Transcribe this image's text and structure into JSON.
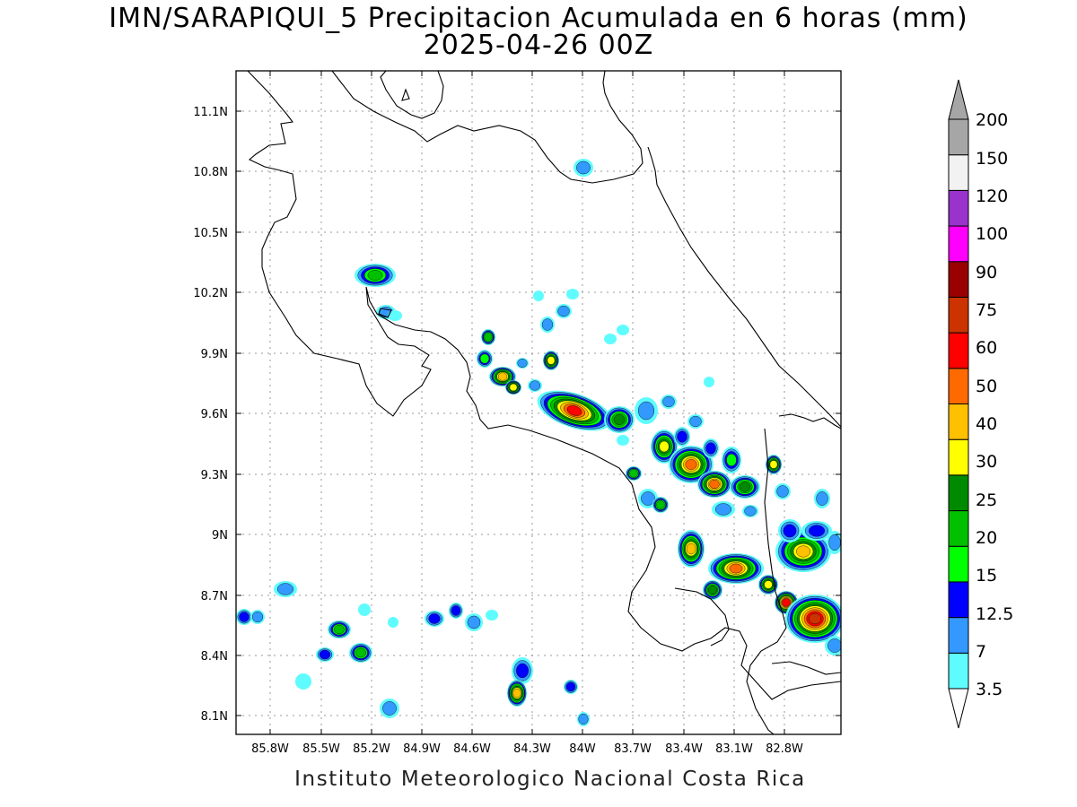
{
  "title": {
    "line1": "IMN/SARAPIQUI_5 Precipitacion Acumulada en 6 horas (mm)",
    "line2": "2025-04-26 00Z"
  },
  "footer": "Instituto Meteorologico Nacional Costa Rica",
  "axes": {
    "lat_labels": [
      "11.1N",
      "10.8N",
      "10.5N",
      "10.2N",
      "9.9N",
      "9.6N",
      "9.3N",
      "9N",
      "8.7N",
      "8.4N",
      "8.1N"
    ],
    "lon_labels": [
      "85.8W",
      "85.5W",
      "85.2W",
      "84.9W",
      "84.6W",
      "84.3W",
      "84W",
      "83.7W",
      "83.4W",
      "83.1W",
      "82.8W"
    ],
    "grid": true
  },
  "colorbar": {
    "levels": [
      "3.5",
      "7",
      "12.5",
      "15",
      "20",
      "25",
      "30",
      "40",
      "50",
      "60",
      "75",
      "90",
      "100",
      "120",
      "150",
      "200"
    ],
    "colors": [
      "#5ffcff",
      "#3399ff",
      "#0000ff",
      "#00ff00",
      "#00c000",
      "#008a00",
      "#ffff00",
      "#ffc000",
      "#ff6a00",
      "#ff0000",
      "#cc3300",
      "#990000",
      "#ff00ff",
      "#9933cc",
      "#f2f2f2",
      "#a6a6a6"
    ]
  }
}
